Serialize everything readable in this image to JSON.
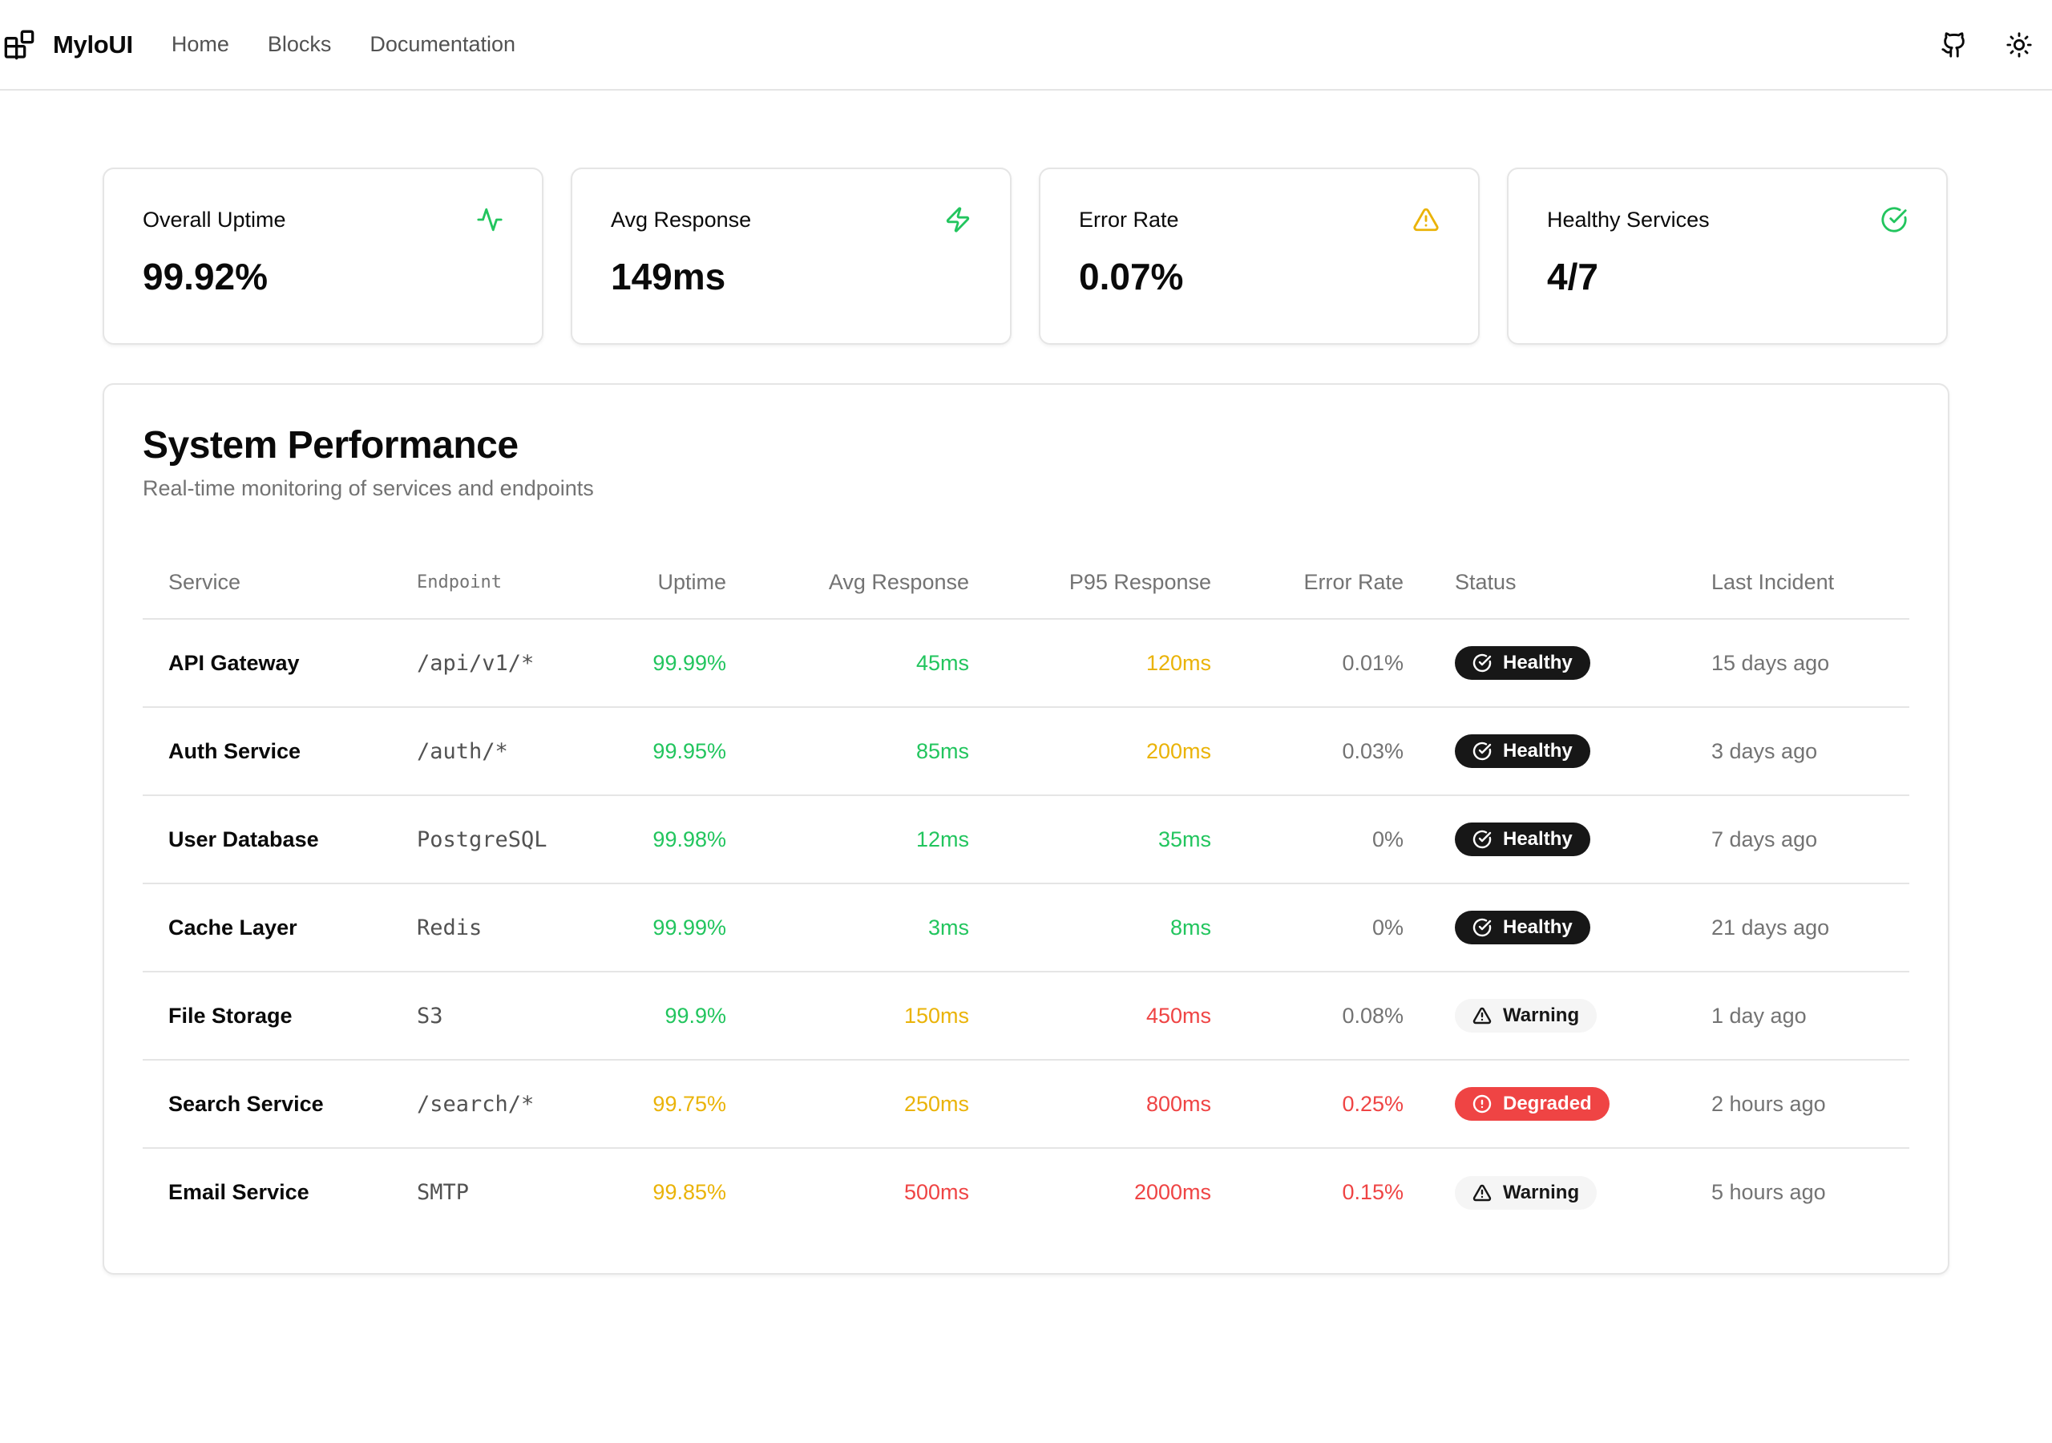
{
  "app": {
    "name": "MyloUI",
    "nav": [
      "Home",
      "Blocks",
      "Documentation"
    ]
  },
  "colors": {
    "green": "#22c55e",
    "yellow": "#eab308",
    "red": "#ef4444",
    "dark": "#171717"
  },
  "metrics": [
    {
      "label": "Overall Uptime",
      "value": "99.92%",
      "icon": "activity-icon",
      "icon_color": "#22c55e"
    },
    {
      "label": "Avg Response",
      "value": "149ms",
      "icon": "zap-icon",
      "icon_color": "#22c55e"
    },
    {
      "label": "Error Rate",
      "value": "0.07%",
      "icon": "alert-triangle-icon",
      "icon_color": "#eab308"
    },
    {
      "label": "Healthy Services",
      "value": "4/7",
      "icon": "check-circle-icon",
      "icon_color": "#22c55e"
    }
  ],
  "performance": {
    "title": "System Performance",
    "subtitle": "Real-time monitoring of services and endpoints",
    "columns": [
      "Service",
      "Endpoint",
      "Uptime",
      "Avg Response",
      "P95 Response",
      "Error Rate",
      "Status",
      "Last Incident"
    ],
    "rows": [
      {
        "service": "API Gateway",
        "endpoint": "/api/v1/*",
        "uptime": "99.99%",
        "uptime_color": "green",
        "avg": "45ms",
        "avg_color": "green",
        "p95": "120ms",
        "p95_color": "yellow",
        "error": "0.01%",
        "error_color": "gray",
        "status": "Healthy",
        "incident": "15 days ago"
      },
      {
        "service": "Auth Service",
        "endpoint": "/auth/*",
        "uptime": "99.95%",
        "uptime_color": "green",
        "avg": "85ms",
        "avg_color": "green",
        "p95": "200ms",
        "p95_color": "yellow",
        "error": "0.03%",
        "error_color": "gray",
        "status": "Healthy",
        "incident": "3 days ago"
      },
      {
        "service": "User Database",
        "endpoint": "PostgreSQL",
        "uptime": "99.98%",
        "uptime_color": "green",
        "avg": "12ms",
        "avg_color": "green",
        "p95": "35ms",
        "p95_color": "green",
        "error": "0%",
        "error_color": "gray",
        "status": "Healthy",
        "incident": "7 days ago"
      },
      {
        "service": "Cache Layer",
        "endpoint": "Redis",
        "uptime": "99.99%",
        "uptime_color": "green",
        "avg": "3ms",
        "avg_color": "green",
        "p95": "8ms",
        "p95_color": "green",
        "error": "0%",
        "error_color": "gray",
        "status": "Healthy",
        "incident": "21 days ago"
      },
      {
        "service": "File Storage",
        "endpoint": "S3",
        "uptime": "99.9%",
        "uptime_color": "green",
        "avg": "150ms",
        "avg_color": "yellow",
        "p95": "450ms",
        "p95_color": "red",
        "error": "0.08%",
        "error_color": "gray",
        "status": "Warning",
        "incident": "1 day ago"
      },
      {
        "service": "Search Service",
        "endpoint": "/search/*",
        "uptime": "99.75%",
        "uptime_color": "yellow",
        "avg": "250ms",
        "avg_color": "yellow",
        "p95": "800ms",
        "p95_color": "red",
        "error": "0.25%",
        "error_color": "red",
        "status": "Degraded",
        "incident": "2 hours ago"
      },
      {
        "service": "Email Service",
        "endpoint": "SMTP",
        "uptime": "99.85%",
        "uptime_color": "yellow",
        "avg": "500ms",
        "avg_color": "red",
        "p95": "2000ms",
        "p95_color": "red",
        "error": "0.15%",
        "error_color": "red",
        "status": "Warning",
        "incident": "5 hours ago"
      }
    ]
  }
}
